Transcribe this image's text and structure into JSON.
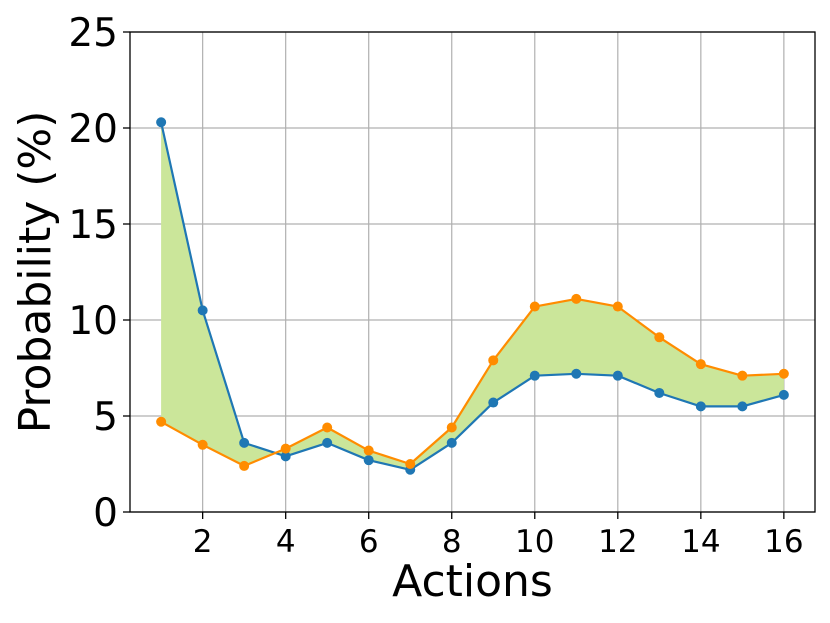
{
  "chart_data": {
    "type": "line",
    "title": "",
    "xlabel": "Actions",
    "ylabel": "Probability (%)",
    "xlim": [
      0.25,
      16.75
    ],
    "ylim": [
      0,
      25
    ],
    "x_ticks": [
      2,
      4,
      6,
      8,
      10,
      12,
      14,
      16
    ],
    "y_ticks": [
      0,
      5,
      10,
      15,
      20,
      25
    ],
    "grid": true,
    "x": [
      1,
      2,
      3,
      4,
      5,
      6,
      7,
      8,
      9,
      10,
      11,
      12,
      13,
      14,
      15,
      16
    ],
    "series": [
      {
        "color": "#1f77b4",
        "values": [
          20.3,
          10.5,
          3.6,
          2.9,
          3.6,
          2.7,
          2.2,
          3.6,
          5.7,
          7.1,
          7.2,
          7.1,
          6.2,
          5.5,
          5.5,
          6.1
        ]
      },
      {
        "color": "#ff8c00",
        "values": [
          4.7,
          3.5,
          2.4,
          3.3,
          4.4,
          3.2,
          2.5,
          4.4,
          7.9,
          10.7,
          11.1,
          10.7,
          9.1,
          7.7,
          7.1,
          7.2
        ]
      }
    ],
    "fill_between": {
      "color": "#cbe69a"
    }
  }
}
